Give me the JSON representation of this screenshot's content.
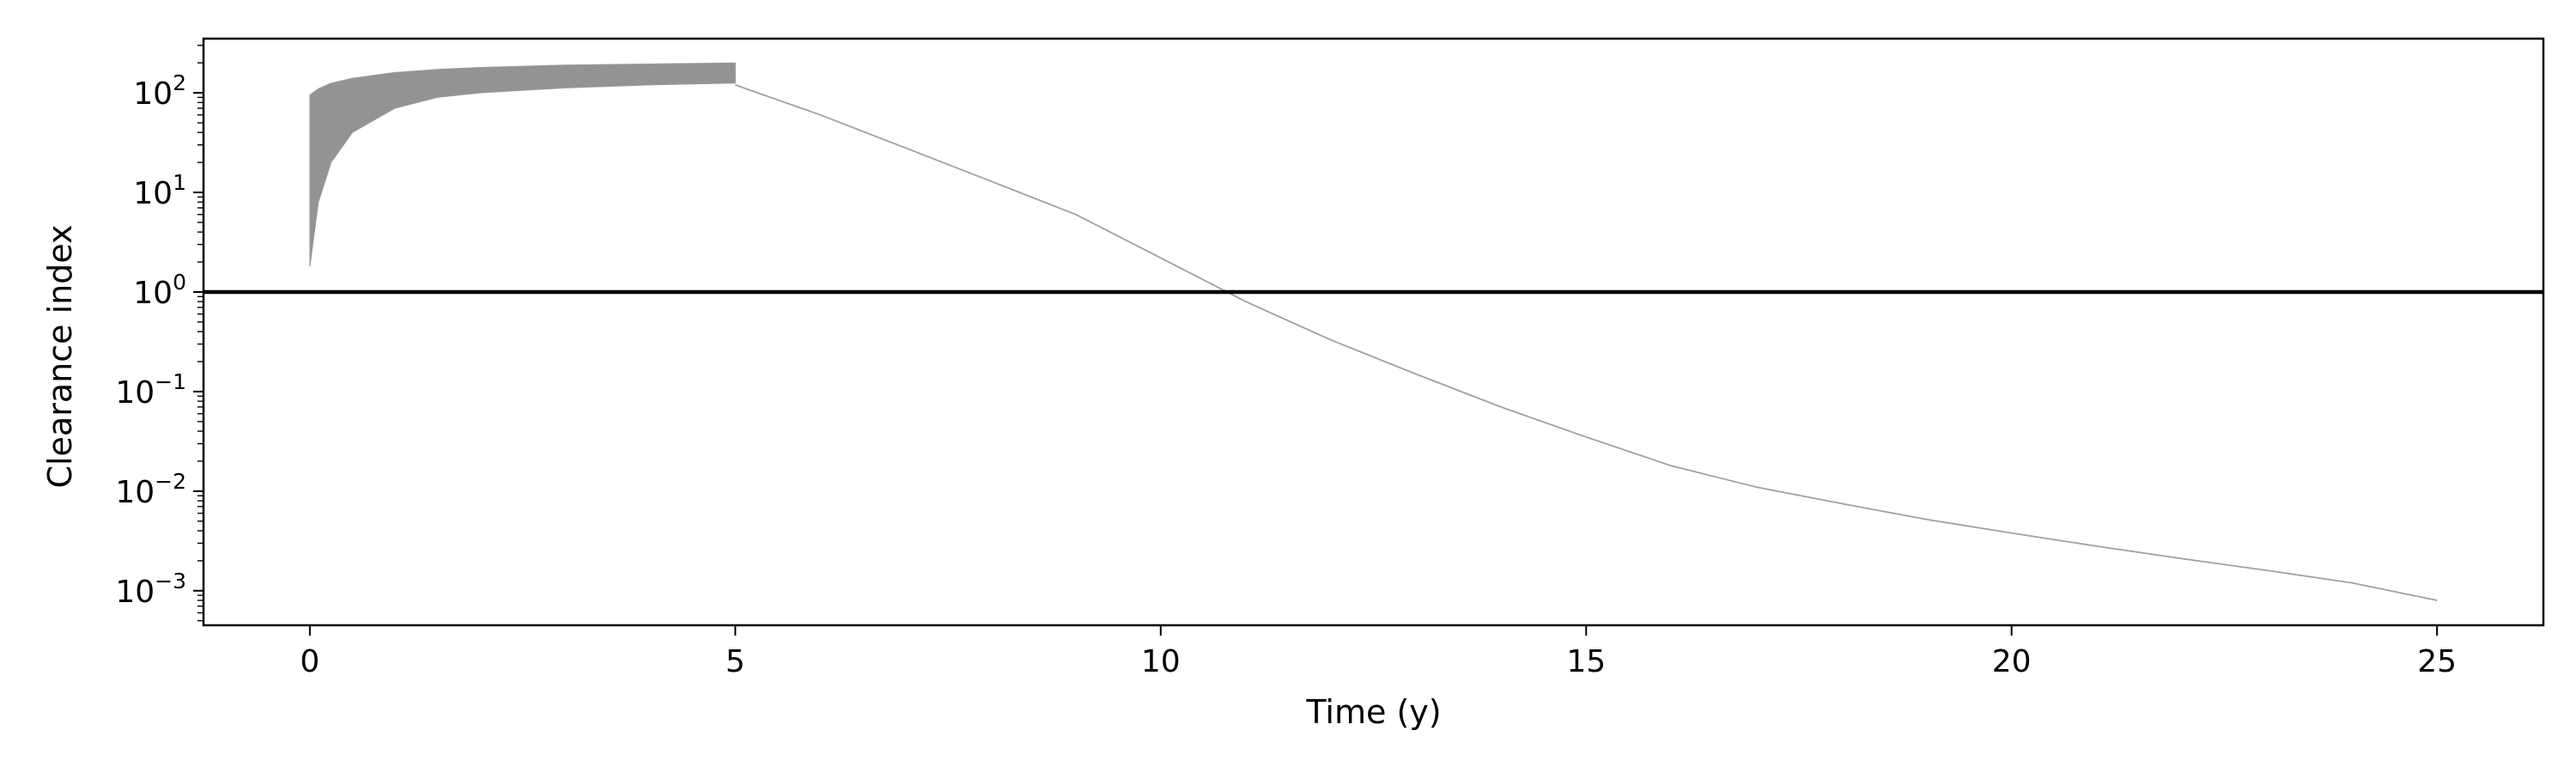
{
  "chart_data": {
    "type": "line",
    "title": "",
    "xlabel": "Time (y)",
    "ylabel": "Clearance index",
    "xscale": "linear",
    "yscale": "log",
    "xlim": [
      -1.25,
      26.25
    ],
    "ylim": [
      0.00045,
      350
    ],
    "xticks": [
      {
        "value": 0,
        "label": "0"
      },
      {
        "value": 5,
        "label": "5"
      },
      {
        "value": 10,
        "label": "10"
      },
      {
        "value": 15,
        "label": "15"
      },
      {
        "value": 20,
        "label": "20"
      },
      {
        "value": 25,
        "label": "25"
      }
    ],
    "yticks": [
      {
        "value": 0.001,
        "base": "10",
        "exp": "−3"
      },
      {
        "value": 0.01,
        "base": "10",
        "exp": "−2"
      },
      {
        "value": 0.1,
        "base": "10",
        "exp": "−1"
      },
      {
        "value": 1,
        "base": "10",
        "exp": "0"
      },
      {
        "value": 10,
        "base": "10",
        "exp": "1"
      },
      {
        "value": 100,
        "base": "10",
        "exp": "2"
      }
    ],
    "reference_line": {
      "y": 1,
      "color": "#000000"
    },
    "band": {
      "color": "#808080",
      "x": [
        0,
        0.1,
        0.25,
        0.5,
        1,
        1.5,
        2,
        3,
        4,
        5
      ],
      "lower": [
        1.8,
        8,
        20,
        40,
        70,
        90,
        100,
        112,
        120,
        125
      ],
      "upper": [
        95,
        110,
        125,
        140,
        160,
        172,
        180,
        190,
        195,
        200
      ]
    },
    "series": [
      {
        "color": "#a0a0a0",
        "x": [
          5,
          6,
          7,
          8,
          9,
          10,
          11,
          12,
          13,
          14,
          15,
          16,
          17,
          18,
          19,
          20,
          21,
          22,
          23,
          24,
          25
        ],
        "y": [
          120,
          60,
          28,
          13,
          6,
          2.2,
          0.8,
          0.33,
          0.15,
          0.07,
          0.035,
          0.018,
          0.011,
          0.0075,
          0.0052,
          0.0038,
          0.0028,
          0.0021,
          0.0016,
          0.0012,
          0.0008
        ]
      }
    ],
    "legend": "none",
    "grid": false
  }
}
